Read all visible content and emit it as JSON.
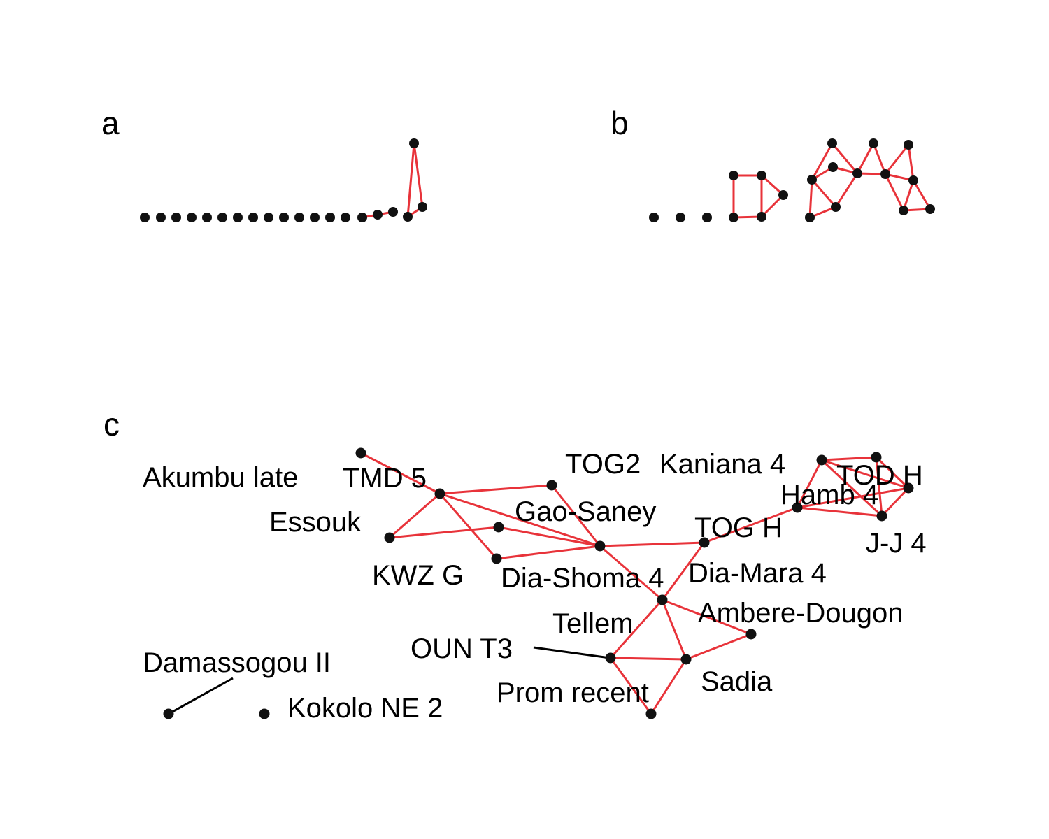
{
  "panels": [
    {
      "id": "a",
      "label": "a"
    },
    {
      "id": "b",
      "label": "b"
    },
    {
      "id": "c",
      "label": "c"
    }
  ],
  "panel_c_labels": {
    "akumbu_late": "Akumbu late",
    "tmd5": "TMD 5",
    "tog2": "TOG2",
    "kaniana4": "Kaniana 4",
    "todh": "TOD H",
    "hamb4": "Hamb 4",
    "essouk": "Essouk",
    "gao_saney": "Gao-Saney",
    "togh": "TOG H",
    "jj4": "J-J 4",
    "kwzg": "KWZ G",
    "dia_shoma4": "Dia-Shoma 4",
    "dia_mara4": "Dia-Mara 4",
    "tellem": "Tellem",
    "ambere_dougon": "Ambere-Dougon",
    "oun_t3": "OUN T3",
    "damassogou2": "Damassogou II",
    "sadia": "Sadia",
    "prom_recent": "Prom recent",
    "kokolo_ne2": "Kokolo NE 2"
  },
  "colors": {
    "edge": "#e8333a",
    "node": "#111111",
    "leader": "#000000"
  }
}
